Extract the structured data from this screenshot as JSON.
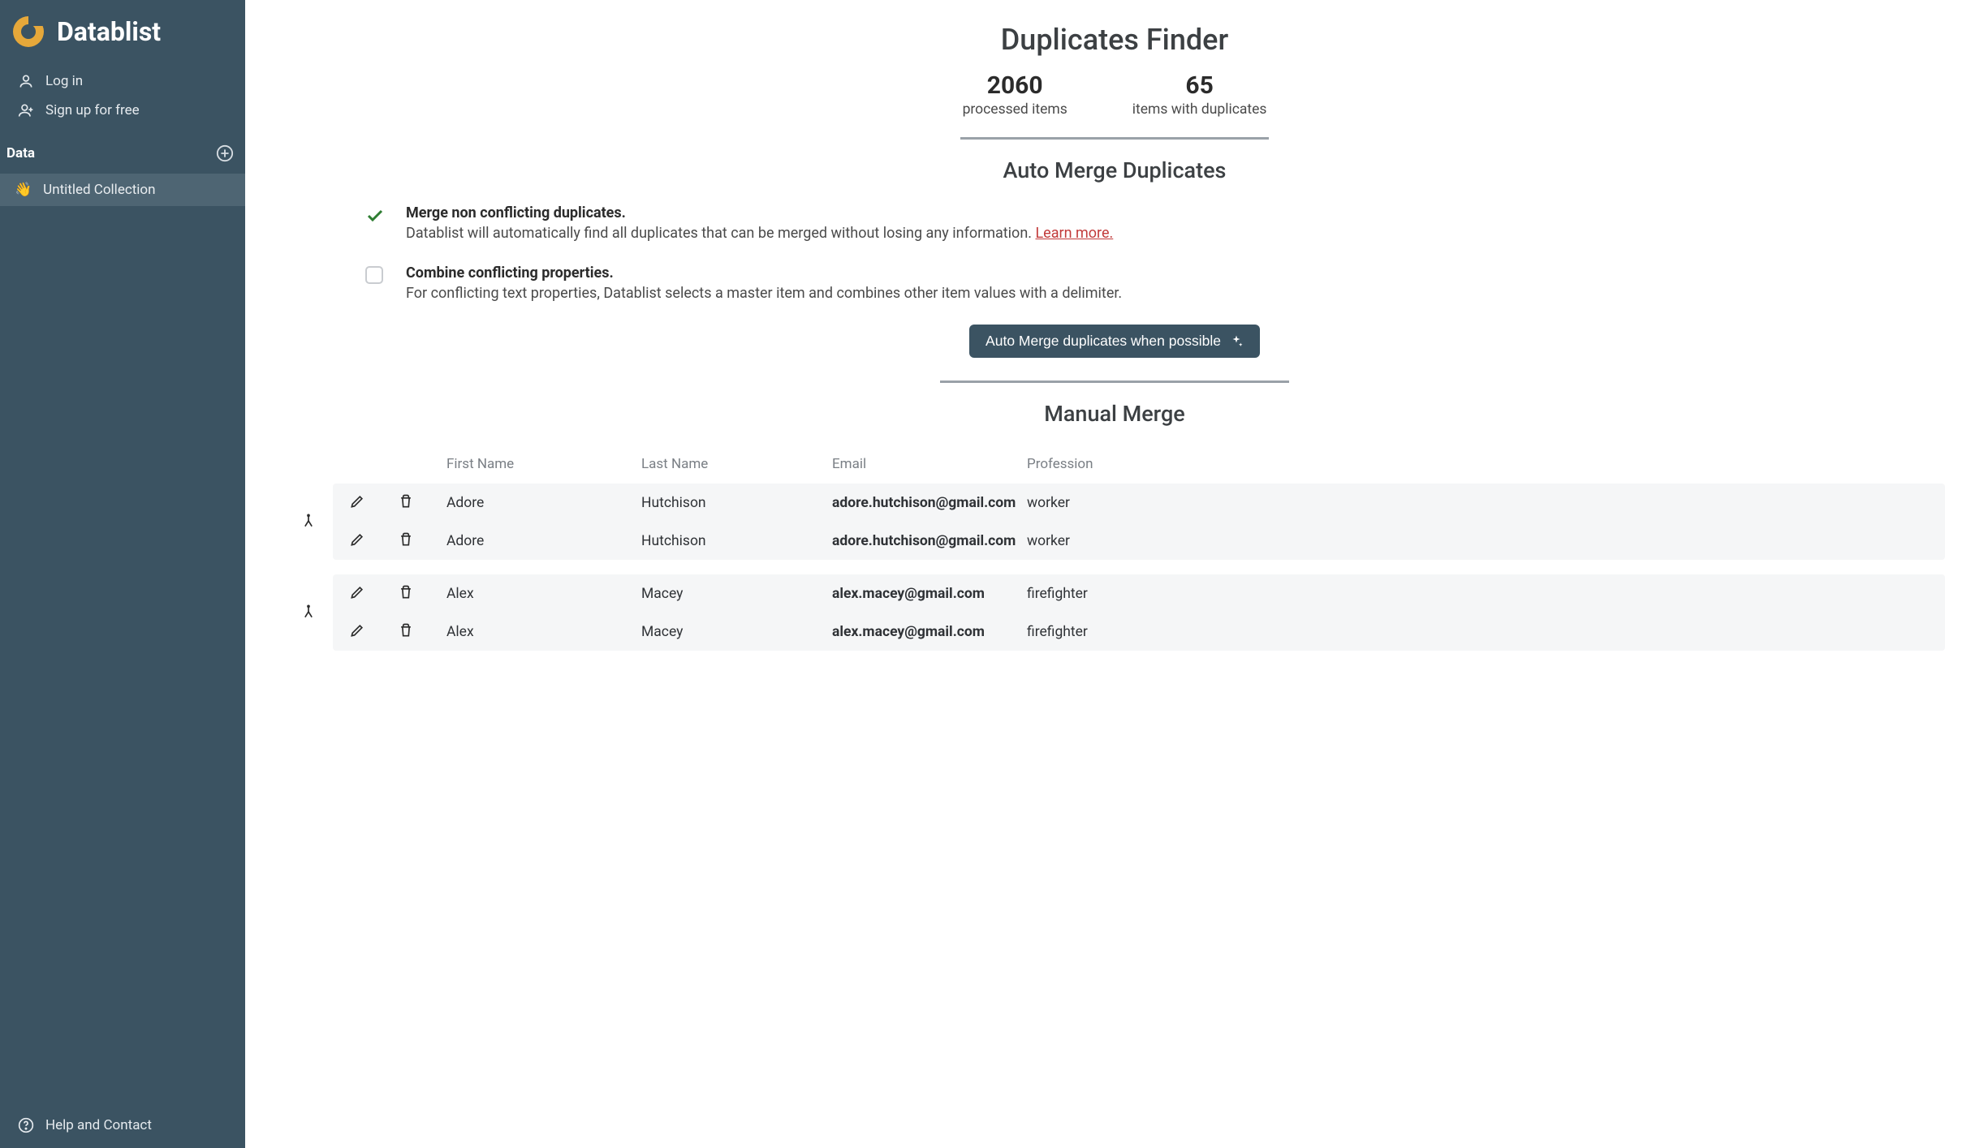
{
  "app": {
    "name": "Datablist"
  },
  "sidebar": {
    "login": "Log in",
    "signup": "Sign up for free",
    "section": "Data",
    "collection": {
      "emoji": "👋",
      "name": "Untitled Collection"
    },
    "help": "Help and Contact"
  },
  "header": {
    "title": "Duplicates Finder"
  },
  "stats": {
    "processed_value": "2060",
    "processed_label": "processed items",
    "duplicates_value": "65",
    "duplicates_label": "items with duplicates"
  },
  "auto_merge": {
    "title": "Auto Merge Duplicates",
    "opt1": {
      "title": "Merge non conflicting duplicates.",
      "desc": "Datablist will automatically find all duplicates that can be merged without losing any information. ",
      "link": "Learn more."
    },
    "opt2": {
      "title": "Combine conflicting properties.",
      "desc": "For conflicting text properties, Datablist selects a master item and combines other item values with a delimiter."
    },
    "button": "Auto Merge duplicates when possible"
  },
  "manual": {
    "title": "Manual Merge",
    "columns": {
      "first": "First Name",
      "last": "Last Name",
      "email": "Email",
      "profession": "Profession"
    },
    "groups": [
      {
        "rows": [
          {
            "first": "Adore",
            "last": "Hutchison",
            "email": "adore.hutchison@gmail.com",
            "profession": "worker"
          },
          {
            "first": "Adore",
            "last": "Hutchison",
            "email": "adore.hutchison@gmail.com",
            "profession": "worker"
          }
        ]
      },
      {
        "rows": [
          {
            "first": "Alex",
            "last": "Macey",
            "email": "alex.macey@gmail.com",
            "profession": "firefighter"
          },
          {
            "first": "Alex",
            "last": "Macey",
            "email": "alex.macey@gmail.com",
            "profession": "firefighter"
          }
        ]
      }
    ]
  },
  "colors": {
    "sidebar_bg": "#3b5362",
    "sidebar_active_bg": "#4e6573",
    "accent": "#e6a83a",
    "check_green": "#2e7d32",
    "link_red": "#c23b3b",
    "row_bg": "#f5f6f7",
    "divider": "#9aa1a8"
  }
}
